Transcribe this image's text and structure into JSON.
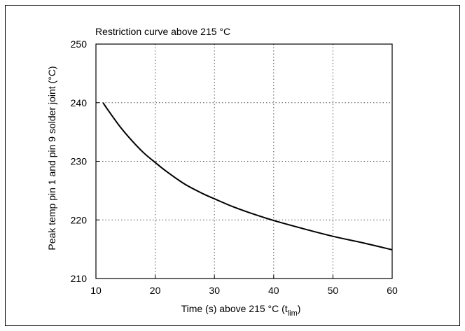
{
  "chart_data": {
    "type": "line",
    "title": "Restriction curve above 215 °C",
    "xlabel": "Time (s) above 215 °C (t",
    "xlabel_subscript": "lim",
    "xlabel_suffix": ")",
    "ylabel": "Peak temp pin 1 and pin 9 solder joint  (°C)",
    "xlim": [
      10,
      60
    ],
    "ylim": [
      210,
      250
    ],
    "x_ticks": [
      10,
      20,
      30,
      40,
      50,
      60
    ],
    "y_ticks": [
      210,
      220,
      230,
      240,
      250
    ],
    "x_tick_labels": [
      "10",
      "20",
      "30",
      "40",
      "50",
      "60"
    ],
    "y_tick_labels": [
      "210",
      "220",
      "230",
      "240",
      "250"
    ],
    "grid": true,
    "colors": {
      "line": "#000000",
      "grid": "#555555",
      "background": "#ffffff"
    },
    "series": [
      {
        "x": [
          11.2,
          12,
          14,
          16,
          18,
          20,
          22,
          25,
          28,
          30,
          33,
          36,
          40,
          45,
          50,
          55,
          60
        ],
        "y": [
          240.0,
          238.8,
          236.0,
          233.6,
          231.5,
          229.8,
          228.2,
          226.1,
          224.5,
          223.6,
          222.3,
          221.2,
          219.9,
          218.5,
          217.2,
          216.1,
          214.9
        ]
      }
    ]
  }
}
